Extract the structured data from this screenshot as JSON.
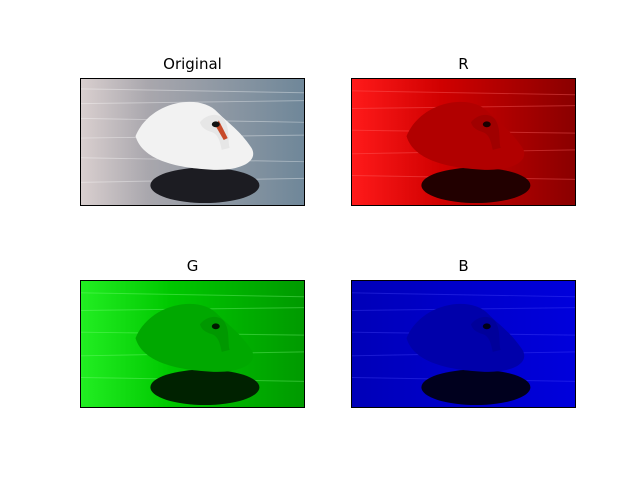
{
  "panels": [
    {
      "id": "orig",
      "title": "Original",
      "channel": "rgb"
    },
    {
      "id": "r",
      "title": "R",
      "channel": "r"
    },
    {
      "id": "g",
      "title": "G",
      "channel": "g"
    },
    {
      "id": "b",
      "title": "B",
      "channel": "b"
    }
  ],
  "colors": {
    "water_orig": "#7f8e9a",
    "water_r": "#c80000",
    "water_g": "#00b400",
    "water_b": "#0000c8"
  }
}
